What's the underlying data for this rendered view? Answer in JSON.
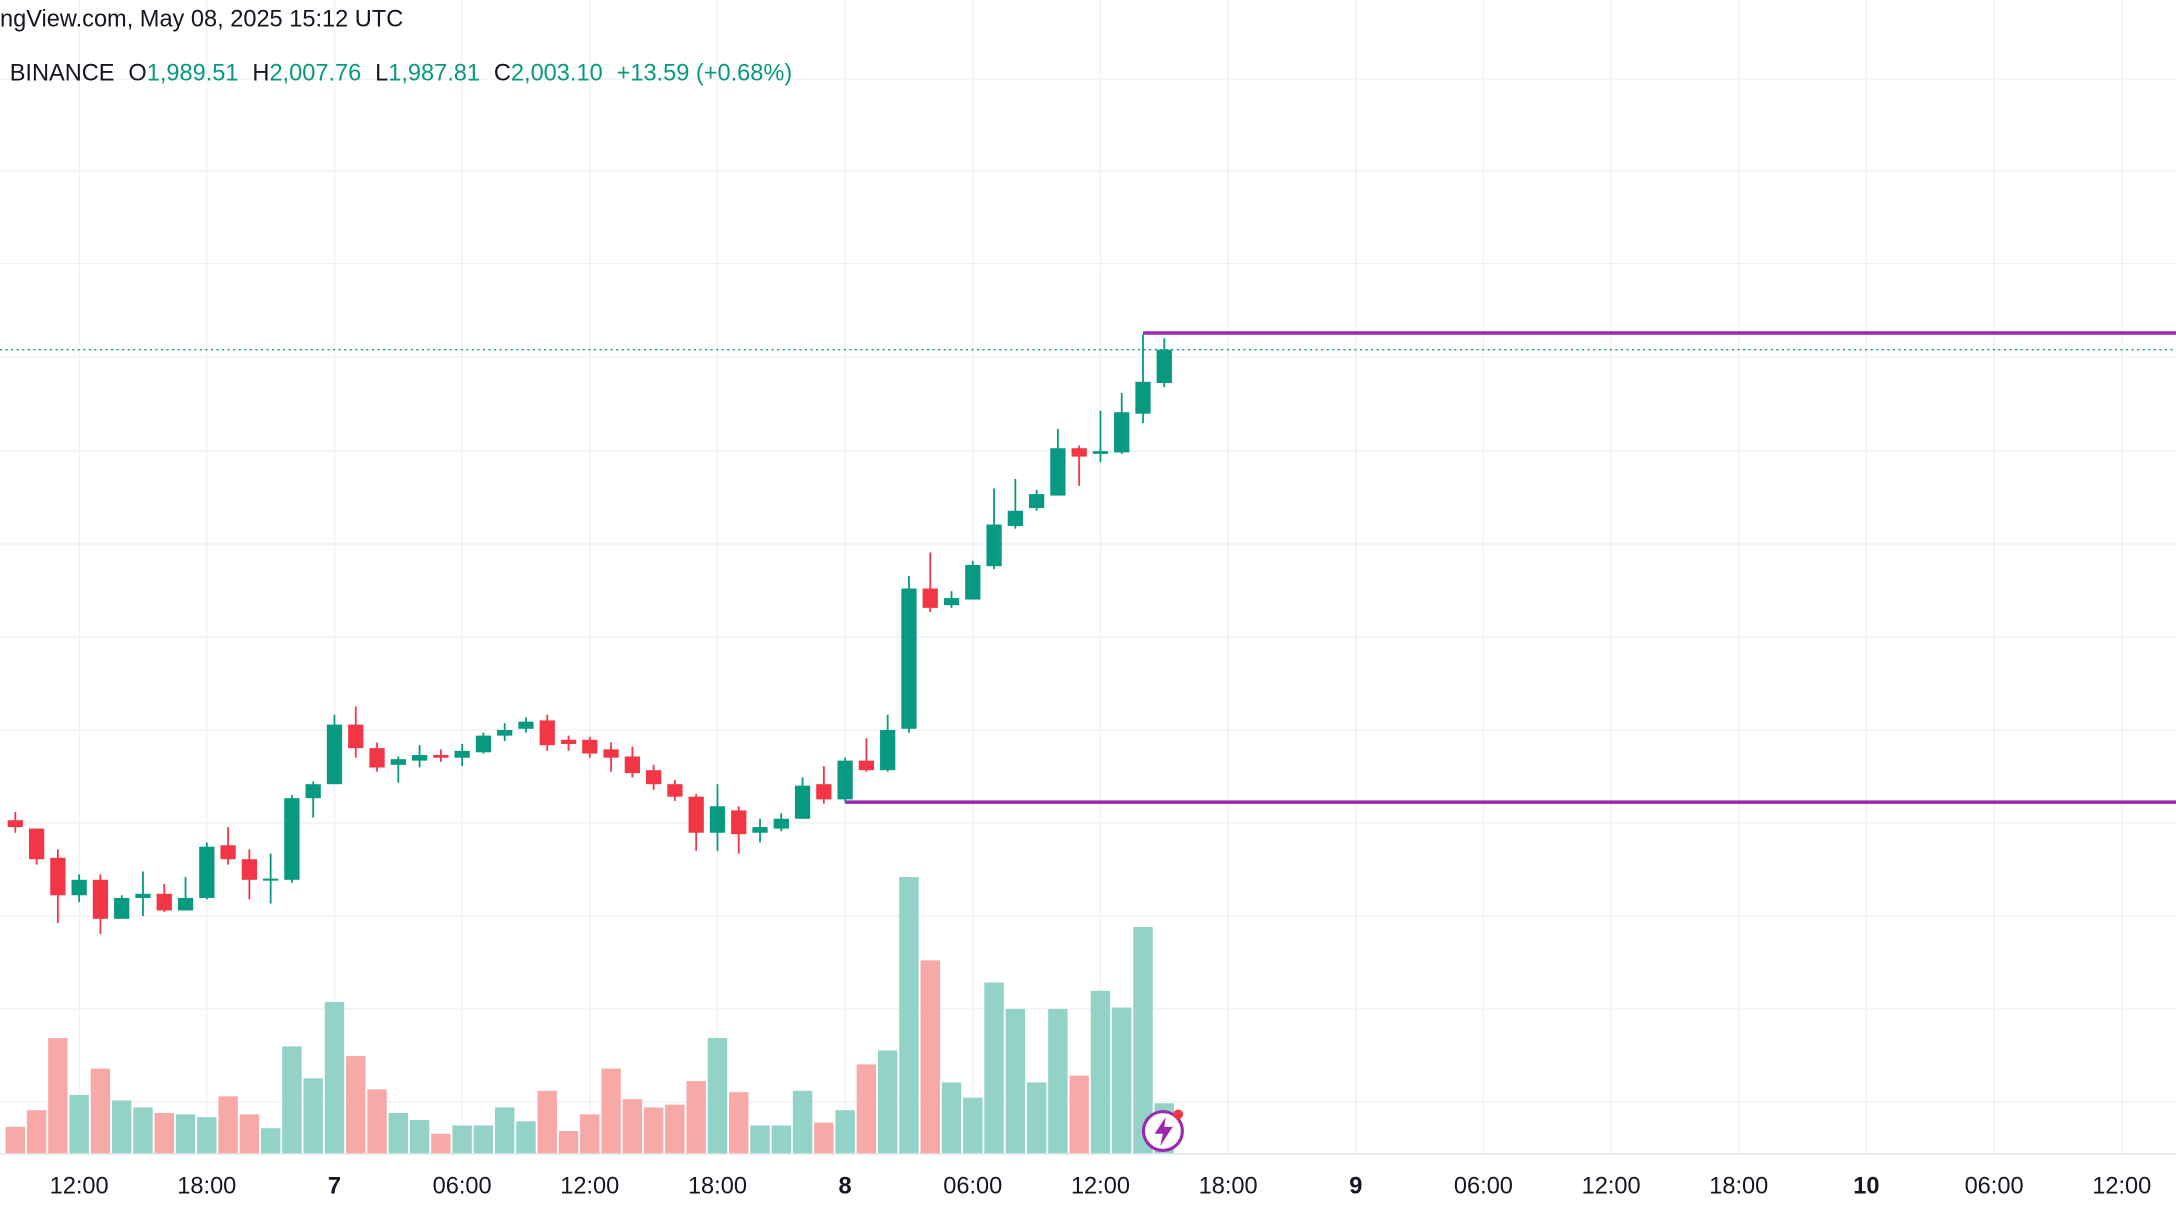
{
  "chart_data": {
    "type": "candlestick",
    "source": "ngView.com, May 08, 2025 15:12 UTC",
    "exchange": "BINANCE",
    "legend": {
      "open_key": "O",
      "open": "1,989.51",
      "high_key": "H",
      "high": "2,007.76",
      "low_key": "L",
      "low": "1,987.81",
      "close_key": "C",
      "close": "2,003.10",
      "change": "+13.59 (+0.68%)"
    },
    "up_color": "#089981",
    "down_color": "#f23645",
    "up_volume_color": "#92d2c7",
    "down_volume_color": "#f7a9a7",
    "level_color": "#9c27b0",
    "xlim": [
      8.28,
      110.55
    ],
    "ylim": [
      1675.4,
      2145.7
    ],
    "xticks": [
      {
        "value": 12,
        "label": "12:00"
      },
      {
        "value": 18,
        "label": "18:00"
      },
      {
        "value": 24,
        "label": "7"
      },
      {
        "value": 30,
        "label": "06:00"
      },
      {
        "value": 36,
        "label": "12:00"
      },
      {
        "value": 42,
        "label": "18:00"
      },
      {
        "value": 48,
        "label": "8"
      },
      {
        "value": 54,
        "label": "06:00"
      },
      {
        "value": 60,
        "label": "12:00"
      },
      {
        "value": 66,
        "label": "18:00"
      },
      {
        "value": 72,
        "label": "9"
      },
      {
        "value": 78,
        "label": "06:00"
      },
      {
        "value": 84,
        "label": "12:00"
      },
      {
        "value": 90,
        "label": "18:00"
      },
      {
        "value": 96,
        "label": "10"
      },
      {
        "value": 102,
        "label": "06:00"
      },
      {
        "value": 108,
        "label": "12:00"
      }
    ],
    "x": [
      9,
      10,
      11,
      12,
      13,
      14,
      15,
      16,
      17,
      18,
      19,
      20,
      21,
      22,
      23,
      24,
      25,
      26,
      27,
      28,
      29,
      30,
      31,
      32,
      33,
      34,
      35,
      36,
      37,
      38,
      39,
      40,
      41,
      42,
      43,
      44,
      45,
      46,
      47,
      48,
      49,
      50,
      51,
      52,
      53,
      54,
      55,
      56,
      57,
      58,
      59,
      60,
      61,
      62,
      63
    ],
    "open": [
      1811.2,
      1807.8,
      1795.9,
      1780.6,
      1786.9,
      1771.0,
      1779.5,
      1781.2,
      1774.4,
      1779.5,
      1801.0,
      1795.3,
      1786.9,
      1786.9,
      1820.2,
      1825.9,
      1850.2,
      1840.6,
      1833.8,
      1835.5,
      1837.8,
      1836.7,
      1838.9,
      1845.7,
      1848.5,
      1851.9,
      1844.0,
      1844.0,
      1840.1,
      1837.2,
      1831.6,
      1825.9,
      1820.8,
      1806.1,
      1815.2,
      1806.1,
      1807.8,
      1811.8,
      1825.9,
      1819.7,
      1835.5,
      1831.6,
      1848.5,
      1905.7,
      1898.9,
      1901.2,
      1914.8,
      1931.2,
      1938.5,
      1943.6,
      1962.9,
      1960.6,
      1961.2,
      1977.0,
      1989.51
    ],
    "high": [
      1814.6,
      1807.8,
      1799.3,
      1789.1,
      1789.1,
      1780.6,
      1790.3,
      1785.2,
      1788.0,
      1802.1,
      1808.4,
      1799.3,
      1797.6,
      1821.4,
      1827.0,
      1854.2,
      1857.6,
      1842.9,
      1837.2,
      1841.8,
      1840.1,
      1842.3,
      1846.9,
      1850.8,
      1853.1,
      1854.2,
      1845.7,
      1845.2,
      1842.9,
      1841.2,
      1833.8,
      1827.6,
      1821.9,
      1825.9,
      1816.9,
      1811.8,
      1814.0,
      1828.7,
      1833.3,
      1836.7,
      1844.6,
      1854.2,
      1910.8,
      1920.4,
      1904.6,
      1917.0,
      1946.5,
      1950.4,
      1945.9,
      1970.8,
      1964.0,
      1978.2,
      1985.5,
      2009.3,
      2007.76
    ],
    "low": [
      1806.1,
      1793.1,
      1769.3,
      1777.8,
      1764.8,
      1771.0,
      1772.1,
      1773.8,
      1774.4,
      1778.9,
      1793.1,
      1778.9,
      1777.2,
      1785.7,
      1812.3,
      1825.9,
      1836.7,
      1831.0,
      1826.5,
      1832.7,
      1835.0,
      1833.3,
      1838.4,
      1843.5,
      1846.9,
      1839.5,
      1839.5,
      1836.7,
      1831.0,
      1828.7,
      1823.6,
      1819.1,
      1798.7,
      1798.7,
      1797.6,
      1802.1,
      1806.7,
      1811.8,
      1818.0,
      1818.6,
      1831.0,
      1831.0,
      1846.9,
      1896.1,
      1897.8,
      1901.2,
      1913.6,
      1930.1,
      1937.4,
      1943.6,
      1947.6,
      1957.2,
      1960.6,
      1973.1,
      1987.81
    ],
    "close": [
      1808.4,
      1795.3,
      1780.6,
      1786.9,
      1771.0,
      1779.5,
      1781.2,
      1774.4,
      1779.5,
      1800.4,
      1795.3,
      1786.9,
      1787.4,
      1820.2,
      1825.9,
      1850.2,
      1840.6,
      1832.7,
      1836.1,
      1837.8,
      1836.7,
      1839.5,
      1845.7,
      1848.0,
      1851.4,
      1841.8,
      1842.3,
      1838.4,
      1836.7,
      1830.4,
      1825.9,
      1820.8,
      1806.1,
      1816.9,
      1805.5,
      1808.4,
      1811.8,
      1825.3,
      1819.7,
      1835.5,
      1831.6,
      1848.0,
      1905.7,
      1897.8,
      1901.8,
      1915.3,
      1931.8,
      1937.4,
      1944.2,
      1962.9,
      1959.5,
      1961.7,
      1977.6,
      1990.0,
      2003.1
    ],
    "volumes": [
      19,
      31,
      83,
      42,
      61,
      38,
      33,
      29,
      28,
      26,
      41,
      28,
      18,
      77,
      54,
      109,
      70,
      46,
      29,
      24,
      14,
      20,
      20,
      33,
      23,
      45,
      16,
      28,
      61,
      39,
      33,
      35,
      52,
      83,
      44,
      20,
      20,
      45,
      22,
      31,
      64,
      74,
      199,
      139,
      51,
      40,
      123,
      104,
      51,
      104,
      56,
      117,
      105,
      163,
      36
    ],
    "levels": [
      {
        "value": 2009.9,
        "from": 62
      },
      {
        "value": 1818.6,
        "from": 48
      }
    ]
  }
}
